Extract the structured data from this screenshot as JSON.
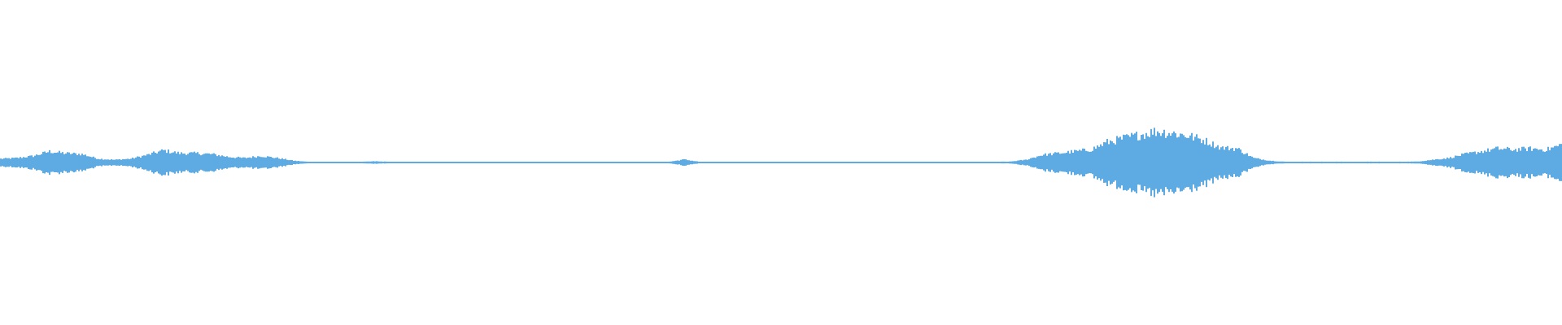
{
  "waveform": {
    "color": "#5dabe2",
    "background": "#ffffff",
    "channels": 1,
    "amplitude_envelope": [
      0.025,
      0.03,
      0.043,
      0.073,
      0.061,
      0.055,
      0.025,
      0.018,
      0.025,
      0.05,
      0.08,
      0.061,
      0.061,
      0.055,
      0.037,
      0.03,
      0.043,
      0.03,
      0.012,
      0.004,
      0.004,
      0.004,
      0.004,
      0.008,
      0.004,
      0.004,
      0.004,
      0.004,
      0.004,
      0.004,
      0.004,
      0.004,
      0.004,
      0.004,
      0.004,
      0.004,
      0.004,
      0.004,
      0.004,
      0.004,
      0.004,
      0.004,
      0.02,
      0.004,
      0.004,
      0.004,
      0.004,
      0.004,
      0.004,
      0.004,
      0.004,
      0.004,
      0.004,
      0.004,
      0.004,
      0.004,
      0.004,
      0.004,
      0.004,
      0.004,
      0.004,
      0.004,
      0.006,
      0.018,
      0.05,
      0.061,
      0.073,
      0.085,
      0.134,
      0.16,
      0.183,
      0.207,
      0.195,
      0.177,
      0.146,
      0.098,
      0.092,
      0.03,
      0.012,
      0.005,
      0.005,
      0.005,
      0.005,
      0.005,
      0.005,
      0.005,
      0.005,
      0.006,
      0.018,
      0.03,
      0.055,
      0.073,
      0.092,
      0.085,
      0.092,
      0.085,
      0.12
    ]
  }
}
